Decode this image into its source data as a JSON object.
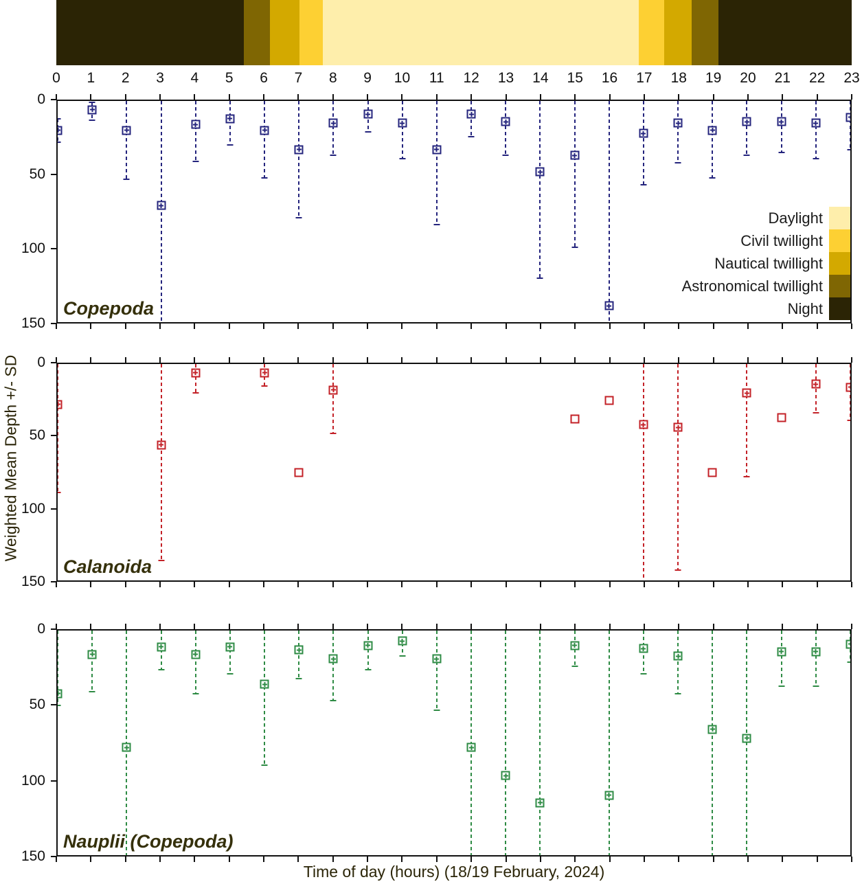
{
  "colors": {
    "daylight": "#feeeab",
    "civil": "#fdd033",
    "nautical": "#d3a900",
    "astronomical": "#7f6603",
    "night": "#2b2405",
    "copepoda_marker": "#24247d",
    "calanoida_marker": "#c32127",
    "nauplii_marker": "#2e8b44"
  },
  "daylight_bar": {
    "segments": [
      {
        "label": "Night",
        "color_key": "night",
        "from": 0,
        "to": 5.42
      },
      {
        "label": "Astronomical twillight",
        "color_key": "astronomical",
        "from": 5.42,
        "to": 6.17
      },
      {
        "label": "Nautical twillight",
        "color_key": "nautical",
        "from": 6.17,
        "to": 7.03
      },
      {
        "label": "Civil twillight",
        "color_key": "civil",
        "from": 7.03,
        "to": 7.7
      },
      {
        "label": "Daylight",
        "color_key": "daylight",
        "from": 7.7,
        "to": 16.85
      },
      {
        "label": "Civil twillight",
        "color_key": "civil",
        "from": 16.85,
        "to": 17.57
      },
      {
        "label": "Nautical twillight",
        "color_key": "nautical",
        "from": 17.57,
        "to": 18.38
      },
      {
        "label": "Astronomical twillight",
        "color_key": "astronomical",
        "from": 18.38,
        "to": 19.14
      },
      {
        "label": "Night",
        "color_key": "night",
        "from": 19.14,
        "to": 23
      }
    ]
  },
  "legend": {
    "items": [
      {
        "label": "Daylight",
        "color_key": "daylight"
      },
      {
        "label": "Civil twillight",
        "color_key": "civil"
      },
      {
        "label": "Nautical twillight",
        "color_key": "nautical"
      },
      {
        "label": "Astronomical twillight",
        "color_key": "astronomical"
      },
      {
        "label": "Night",
        "color_key": "night"
      }
    ]
  },
  "axes": {
    "x": {
      "label": "Time of day (hours) (18/19 February, 2024)",
      "min": 0,
      "max": 23,
      "ticks": [
        0,
        1,
        2,
        3,
        4,
        5,
        6,
        7,
        8,
        9,
        10,
        11,
        12,
        13,
        14,
        15,
        16,
        17,
        18,
        19,
        20,
        21,
        22,
        23
      ]
    },
    "y": {
      "label": "Weighted Mean Depth +/- SD",
      "min": 0,
      "max": 150,
      "ticks": [
        0,
        50,
        100,
        150
      ]
    }
  },
  "chart_data": [
    {
      "type": "scatter",
      "name": "Copepoda",
      "marker_color_key": "copepoda_marker",
      "points": [
        {
          "hour": 0,
          "depth": 20,
          "sd_upper": 12,
          "sd_lower": 28,
          "error_bar": true,
          "plus": true
        },
        {
          "hour": 1,
          "depth": 6,
          "sd_upper": 1,
          "sd_lower": 13,
          "error_bar": true,
          "plus": true
        },
        {
          "hour": 2,
          "depth": 20,
          "sd_upper": 0,
          "sd_lower": 53,
          "error_bar": true,
          "plus": true
        },
        {
          "hour": 3,
          "depth": 71,
          "sd_upper": 0,
          "sd_lower": 150,
          "error_bar": true,
          "plus": true
        },
        {
          "hour": 4,
          "depth": 16,
          "sd_upper": 0,
          "sd_lower": 41,
          "error_bar": true,
          "plus": true
        },
        {
          "hour": 5,
          "depth": 12,
          "sd_upper": 0,
          "sd_lower": 30,
          "error_bar": true,
          "plus": true
        },
        {
          "hour": 6,
          "depth": 20,
          "sd_upper": 0,
          "sd_lower": 52,
          "error_bar": true,
          "plus": true
        },
        {
          "hour": 7,
          "depth": 33,
          "sd_upper": 0,
          "sd_lower": 79,
          "error_bar": true,
          "plus": true
        },
        {
          "hour": 8,
          "depth": 15,
          "sd_upper": 0,
          "sd_lower": 37,
          "error_bar": true,
          "plus": true
        },
        {
          "hour": 9,
          "depth": 9,
          "sd_upper": 0,
          "sd_lower": 21,
          "error_bar": true,
          "plus": true
        },
        {
          "hour": 10,
          "depth": 15,
          "sd_upper": 0,
          "sd_lower": 39,
          "error_bar": true,
          "plus": true
        },
        {
          "hour": 11,
          "depth": 33,
          "sd_upper": 0,
          "sd_lower": 84,
          "error_bar": true,
          "plus": true
        },
        {
          "hour": 12,
          "depth": 9,
          "sd_upper": 0,
          "sd_lower": 24,
          "error_bar": true,
          "plus": true
        },
        {
          "hour": 13,
          "depth": 14,
          "sd_upper": 0,
          "sd_lower": 37,
          "error_bar": true,
          "plus": true
        },
        {
          "hour": 14,
          "depth": 48,
          "sd_upper": 0,
          "sd_lower": 120,
          "error_bar": true,
          "plus": true
        },
        {
          "hour": 15,
          "depth": 37,
          "sd_upper": 0,
          "sd_lower": 99,
          "error_bar": true,
          "plus": true
        },
        {
          "hour": 16,
          "depth": 139,
          "sd_upper": 0,
          "sd_lower": 150,
          "error_bar": true,
          "plus": true
        },
        {
          "hour": 17,
          "depth": 22,
          "sd_upper": 0,
          "sd_lower": 57,
          "error_bar": true,
          "plus": true
        },
        {
          "hour": 18,
          "depth": 15,
          "sd_upper": 0,
          "sd_lower": 42,
          "error_bar": true,
          "plus": true
        },
        {
          "hour": 19,
          "depth": 20,
          "sd_upper": 0,
          "sd_lower": 52,
          "error_bar": true,
          "plus": true
        },
        {
          "hour": 20,
          "depth": 14,
          "sd_upper": 0,
          "sd_lower": 37,
          "error_bar": true,
          "plus": true
        },
        {
          "hour": 21,
          "depth": 14,
          "sd_upper": 0,
          "sd_lower": 35,
          "error_bar": true,
          "plus": true
        },
        {
          "hour": 22,
          "depth": 15,
          "sd_upper": 0,
          "sd_lower": 39,
          "error_bar": true,
          "plus": true
        },
        {
          "hour": 23,
          "depth": 11,
          "sd_upper": 0,
          "sd_lower": 33,
          "error_bar": true,
          "plus": true
        }
      ]
    },
    {
      "type": "scatter",
      "name": "Calanoida",
      "marker_color_key": "calanoida_marker",
      "points": [
        {
          "hour": 0,
          "depth": 28,
          "sd_upper": 0,
          "sd_lower": 89,
          "error_bar": true,
          "plus": true
        },
        {
          "hour": 3,
          "depth": 56,
          "sd_upper": 0,
          "sd_lower": 136,
          "error_bar": true,
          "plus": true
        },
        {
          "hour": 4,
          "depth": 6,
          "sd_upper": 0,
          "sd_lower": 20,
          "error_bar": true,
          "plus": true
        },
        {
          "hour": 6,
          "depth": 6,
          "sd_upper": 0,
          "sd_lower": 15,
          "error_bar": true,
          "plus": true
        },
        {
          "hour": 7,
          "depth": 75,
          "error_bar": false,
          "plus": false
        },
        {
          "hour": 8,
          "depth": 18,
          "sd_upper": 0,
          "sd_lower": 48,
          "error_bar": true,
          "plus": true
        },
        {
          "hour": 15,
          "depth": 38,
          "error_bar": false,
          "plus": false
        },
        {
          "hour": 16,
          "depth": 25,
          "error_bar": false,
          "plus": false
        },
        {
          "hour": 17,
          "depth": 42,
          "sd_upper": 0,
          "sd_lower": 150,
          "error_bar": true,
          "plus": true
        },
        {
          "hour": 18,
          "depth": 44,
          "sd_upper": 0,
          "sd_lower": 143,
          "error_bar": true,
          "plus": true
        },
        {
          "hour": 19,
          "depth": 75,
          "error_bar": false,
          "plus": false
        },
        {
          "hour": 20,
          "depth": 20,
          "sd_upper": 0,
          "sd_lower": 78,
          "error_bar": true,
          "plus": true
        },
        {
          "hour": 21,
          "depth": 37,
          "error_bar": false,
          "plus": false
        },
        {
          "hour": 22,
          "depth": 14,
          "sd_upper": 0,
          "sd_lower": 34,
          "error_bar": true,
          "plus": true
        },
        {
          "hour": 23,
          "depth": 16,
          "sd_upper": 0,
          "sd_lower": 39,
          "error_bar": true,
          "plus": true
        }
      ]
    },
    {
      "type": "scatter",
      "name": "Nauplii (Copepoda)",
      "marker_color_key": "nauplii_marker",
      "points": [
        {
          "hour": 0,
          "depth": 42,
          "sd_upper": 0,
          "sd_lower": 50,
          "error_bar": true,
          "plus": true
        },
        {
          "hour": 1,
          "depth": 16,
          "sd_upper": 0,
          "sd_lower": 41,
          "error_bar": true,
          "plus": true
        },
        {
          "hour": 2,
          "depth": 78,
          "sd_upper": 0,
          "sd_lower": 150,
          "error_bar": true,
          "plus": true
        },
        {
          "hour": 3,
          "depth": 11,
          "sd_upper": 0,
          "sd_lower": 26,
          "error_bar": true,
          "plus": true
        },
        {
          "hour": 4,
          "depth": 16,
          "sd_upper": 0,
          "sd_lower": 42,
          "error_bar": true,
          "plus": true
        },
        {
          "hour": 5,
          "depth": 11,
          "sd_upper": 0,
          "sd_lower": 29,
          "error_bar": true,
          "plus": true
        },
        {
          "hour": 6,
          "depth": 36,
          "sd_upper": 0,
          "sd_lower": 90,
          "error_bar": true,
          "plus": true
        },
        {
          "hour": 7,
          "depth": 13,
          "sd_upper": 0,
          "sd_lower": 32,
          "error_bar": true,
          "plus": true
        },
        {
          "hour": 8,
          "depth": 19,
          "sd_upper": 0,
          "sd_lower": 47,
          "error_bar": true,
          "plus": true
        },
        {
          "hour": 9,
          "depth": 10,
          "sd_upper": 0,
          "sd_lower": 26,
          "error_bar": true,
          "plus": true
        },
        {
          "hour": 10,
          "depth": 7,
          "sd_upper": 0,
          "sd_lower": 17,
          "error_bar": true,
          "plus": true
        },
        {
          "hour": 11,
          "depth": 19,
          "sd_upper": 0,
          "sd_lower": 53,
          "error_bar": true,
          "plus": true
        },
        {
          "hour": 12,
          "depth": 78,
          "sd_upper": 0,
          "sd_lower": 150,
          "error_bar": true,
          "plus": true
        },
        {
          "hour": 13,
          "depth": 97,
          "sd_upper": 0,
          "sd_lower": 150,
          "error_bar": true,
          "plus": true
        },
        {
          "hour": 14,
          "depth": 115,
          "sd_upper": 0,
          "sd_lower": 150,
          "error_bar": true,
          "plus": true
        },
        {
          "hour": 15,
          "depth": 10,
          "sd_upper": 0,
          "sd_lower": 24,
          "error_bar": true,
          "plus": true
        },
        {
          "hour": 16,
          "depth": 110,
          "sd_upper": 0,
          "sd_lower": 150,
          "error_bar": true,
          "plus": true
        },
        {
          "hour": 17,
          "depth": 12,
          "sd_upper": 0,
          "sd_lower": 29,
          "error_bar": true,
          "plus": true
        },
        {
          "hour": 18,
          "depth": 17,
          "sd_upper": 0,
          "sd_lower": 42,
          "error_bar": true,
          "plus": true
        },
        {
          "hour": 19,
          "depth": 66,
          "sd_upper": 0,
          "sd_lower": 150,
          "error_bar": true,
          "plus": true
        },
        {
          "hour": 20,
          "depth": 72,
          "sd_upper": 0,
          "sd_lower": 150,
          "error_bar": true,
          "plus": true
        },
        {
          "hour": 21,
          "depth": 14,
          "sd_upper": 0,
          "sd_lower": 37,
          "error_bar": true,
          "plus": true
        },
        {
          "hour": 22,
          "depth": 14,
          "sd_upper": 0,
          "sd_lower": 37,
          "error_bar": true,
          "plus": true
        },
        {
          "hour": 23,
          "depth": 9,
          "sd_upper": 0,
          "sd_lower": 21,
          "error_bar": true,
          "plus": true
        }
      ]
    }
  ]
}
